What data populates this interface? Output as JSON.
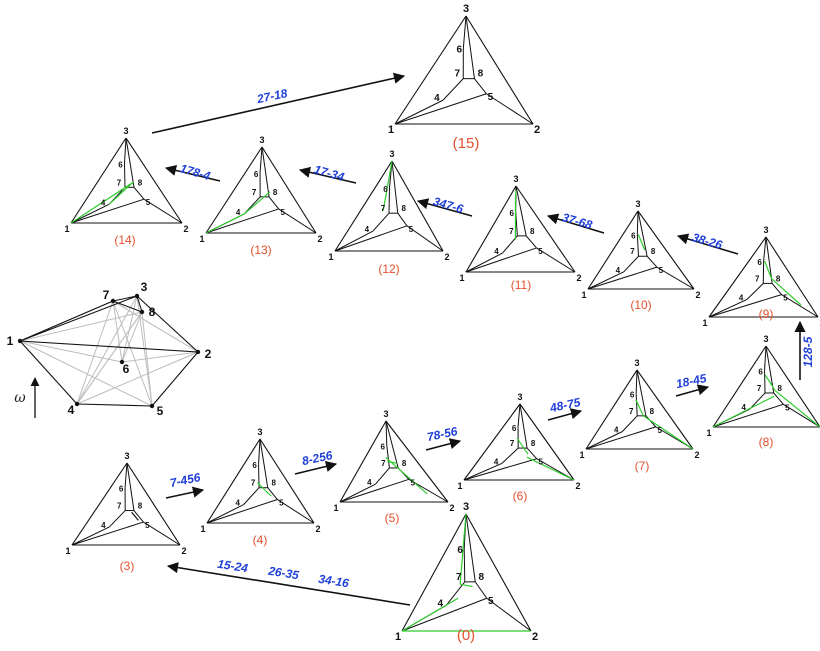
{
  "colors": {
    "edge": "#111111",
    "highlight": "#2ecc2e",
    "index": "#e4502c",
    "move": "#1f3fd8",
    "gray": "#bdbdbd"
  },
  "omega_label": "ω",
  "graph": {
    "vertex_labels": [
      "1",
      "2",
      "3",
      "4",
      "5",
      "6",
      "7",
      "8"
    ]
  },
  "panels": [
    {
      "index": "(0)",
      "vertex_labels": [
        "1",
        "2",
        "3",
        "4",
        "5",
        "6",
        "7",
        "8"
      ]
    },
    {
      "index": "(3)",
      "vertex_labels": [
        "1",
        "2",
        "3",
        "4",
        "5",
        "6",
        "7",
        "8"
      ]
    },
    {
      "index": "(4)",
      "vertex_labels": [
        "1",
        "2",
        "3",
        "4",
        "5",
        "6",
        "7",
        "8"
      ]
    },
    {
      "index": "(5)",
      "vertex_labels": [
        "1",
        "2",
        "3",
        "4",
        "5",
        "6",
        "7",
        "8"
      ]
    },
    {
      "index": "(6)",
      "vertex_labels": [
        "1",
        "2",
        "3",
        "4",
        "5",
        "6",
        "7",
        "8"
      ]
    },
    {
      "index": "(7)",
      "vertex_labels": [
        "1",
        "2",
        "3",
        "4",
        "5",
        "6",
        "7",
        "8"
      ]
    },
    {
      "index": "(8)",
      "vertex_labels": [
        "1",
        "2",
        "3",
        "4",
        "5",
        "6",
        "7",
        "8"
      ]
    },
    {
      "index": "(9)",
      "vertex_labels": [
        "1",
        "2",
        "3",
        "4",
        "5",
        "6",
        "7",
        "8"
      ]
    },
    {
      "index": "(10)",
      "vertex_labels": [
        "1",
        "2",
        "3",
        "4",
        "5",
        "6",
        "7",
        "8"
      ]
    },
    {
      "index": "(11)",
      "vertex_labels": [
        "1",
        "2",
        "3",
        "4",
        "5",
        "6",
        "7",
        "8"
      ]
    },
    {
      "index": "(12)",
      "vertex_labels": [
        "1",
        "2",
        "3",
        "4",
        "5",
        "6",
        "7",
        "8"
      ]
    },
    {
      "index": "(13)",
      "vertex_labels": [
        "1",
        "2",
        "3",
        "4",
        "5",
        "6",
        "7",
        "8"
      ]
    },
    {
      "index": "(14)",
      "vertex_labels": [
        "1",
        "2",
        "3",
        "4",
        "5",
        "6",
        "7",
        "8"
      ]
    },
    {
      "index": "(15)",
      "vertex_labels": [
        "1",
        "2",
        "3",
        "4",
        "5",
        "6",
        "7",
        "8"
      ]
    }
  ],
  "moves": [
    {
      "label": "15-24"
    },
    {
      "label": "26-35"
    },
    {
      "label": "34-16"
    },
    {
      "label": "7-456"
    },
    {
      "label": "8-256"
    },
    {
      "label": "78-56"
    },
    {
      "label": "48-75"
    },
    {
      "label": "18-45"
    },
    {
      "label": "128-5"
    },
    {
      "label": "38-26"
    },
    {
      "label": "37-68"
    },
    {
      "label": "347-6"
    },
    {
      "label": "17-34"
    },
    {
      "label": "178-4"
    },
    {
      "label": "27-18"
    }
  ]
}
